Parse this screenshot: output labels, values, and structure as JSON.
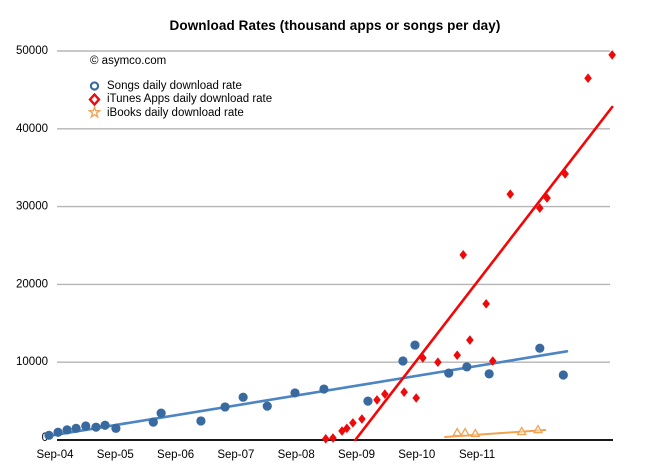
{
  "chart_data": {
    "type": "scatter",
    "title": "Download Rates (thousand apps or songs per day)",
    "watermark": "© asymco.com",
    "x_axis": {
      "tick_labels": [
        "Sep-04",
        "Sep-05",
        "Sep-06",
        "Sep-07",
        "Sep-08",
        "Sep-09",
        "Sep-10",
        "Sep-11"
      ],
      "unit_note": "point x values are years since Sep-2004"
    },
    "ylim": [
      0,
      50000
    ],
    "yticks": [
      0,
      10000,
      20000,
      30000,
      40000,
      50000
    ],
    "grid": "horizontal-only",
    "legend_position": "top-left",
    "axis_color": "#1a1a1a",
    "gridline_color": "#b5b5b5",
    "series": [
      {
        "name": "Songs daily download rate",
        "marker": "circle",
        "color": "#38699F",
        "trend_color": "#4C84C4",
        "points": [
          [
            -0.1,
            600
          ],
          [
            0.05,
            1000
          ],
          [
            0.2,
            1300
          ],
          [
            0.35,
            1500
          ],
          [
            0.51,
            1800
          ],
          [
            0.68,
            1650
          ],
          [
            0.83,
            1900
          ],
          [
            1.01,
            1500
          ],
          [
            1.63,
            2300
          ],
          [
            1.76,
            3450
          ],
          [
            2.42,
            2450
          ],
          [
            2.82,
            4250
          ],
          [
            3.12,
            5500
          ],
          [
            3.52,
            4350
          ],
          [
            3.98,
            6050
          ],
          [
            4.46,
            6550
          ],
          [
            5.19,
            5000
          ],
          [
            5.77,
            10150
          ],
          [
            5.97,
            12200
          ],
          [
            6.53,
            8600
          ],
          [
            6.83,
            9400
          ],
          [
            7.2,
            8500
          ],
          [
            8.04,
            11800
          ],
          [
            8.43,
            8350
          ]
        ],
        "trend": [
          [
            -0.12,
            500
          ],
          [
            8.49,
            11400
          ]
        ]
      },
      {
        "name": "iTunes Apps daily download rate",
        "marker": "diamond",
        "color": "#EE0A0A",
        "trend_color": "#F40606",
        "points": [
          [
            4.49,
            150
          ],
          [
            4.61,
            250
          ],
          [
            4.76,
            1150
          ],
          [
            4.84,
            1500
          ],
          [
            4.94,
            2200
          ],
          [
            5.09,
            2700
          ],
          [
            5.34,
            5150
          ],
          [
            5.47,
            5900
          ],
          [
            5.79,
            6150
          ],
          [
            5.99,
            5400
          ],
          [
            6.1,
            10550
          ],
          [
            6.35,
            10000
          ],
          [
            6.67,
            10900
          ],
          [
            6.77,
            23800
          ],
          [
            6.88,
            12850
          ],
          [
            7.15,
            17500
          ],
          [
            7.26,
            10150
          ],
          [
            7.55,
            31600
          ],
          [
            8.04,
            29800
          ],
          [
            8.16,
            31100
          ],
          [
            8.46,
            34200
          ],
          [
            8.84,
            46500
          ],
          [
            9.24,
            49500
          ]
        ],
        "trend": [
          [
            4.98,
            0
          ],
          [
            9.24,
            42800
          ]
        ]
      },
      {
        "name": "iBooks daily download rate",
        "marker": "triangle",
        "color": "#F2A254",
        "trend_color": "#F0A24E",
        "points": [
          [
            6.67,
            900
          ],
          [
            6.8,
            900
          ],
          [
            6.97,
            770
          ],
          [
            7.74,
            1030
          ],
          [
            8.01,
            1280
          ]
        ],
        "trend": [
          [
            6.47,
            390
          ],
          [
            8.13,
            1280
          ]
        ]
      }
    ]
  }
}
